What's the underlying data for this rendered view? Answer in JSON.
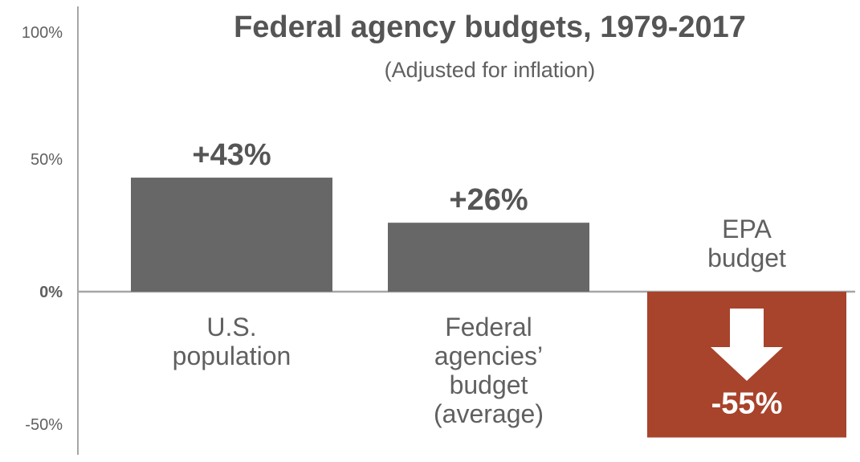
{
  "chart_data": {
    "type": "bar",
    "title": "Federal agency budgets, 1979-2017",
    "subtitle": "(Adjusted for inflation)",
    "ylim": [
      -60,
      100
    ],
    "yticks": [
      {
        "value": 100,
        "label": "100%"
      },
      {
        "value": 50,
        "label": "50%"
      },
      {
        "value": 0,
        "label": "0%"
      },
      {
        "value": -50,
        "label": "-50%"
      }
    ],
    "categories": [
      "U.S. population",
      "Federal agencies’ budget (average)",
      "EPA budget"
    ],
    "category_label_lines": [
      [
        "U.S.",
        "population"
      ],
      [
        "Federal",
        "agencies’",
        "budget",
        "(average)"
      ],
      [
        "EPA",
        "budget"
      ]
    ],
    "values": [
      43,
      26,
      -55
    ],
    "value_labels": [
      "+43%",
      "+26%",
      "-55%"
    ],
    "colors": {
      "positive_bar": "#676767",
      "negative_bar": "#a8432c",
      "axis": "#a6a6a6",
      "title": "#555555",
      "text": "#606060",
      "arrow": "#ffffff"
    },
    "grid": false,
    "legend": "none",
    "icon": "down-arrow-icon"
  }
}
